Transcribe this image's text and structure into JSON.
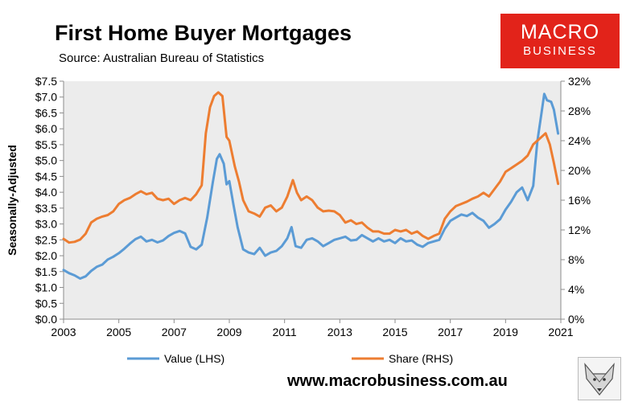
{
  "header": {
    "title": "First Home Buyer Mortgages",
    "subtitle": "Source: Australian Bureau of Statistics"
  },
  "logo": {
    "line1": "MACRO",
    "line2": "BUSINESS",
    "color": "#e2231a"
  },
  "footer": {
    "website": "www.macrobusiness.com.au"
  },
  "icons": {
    "fox": "fox-head-icon"
  },
  "colors": {
    "value_series": "#5b9bd5",
    "share_series": "#ed7d31",
    "plot_bg": "#ececec"
  },
  "chart_data": {
    "type": "line",
    "title": "First Home Buyer Mortgages",
    "ylabel": "Seasonally-Adjusted",
    "ylim": [
      0,
      7.5
    ],
    "y2lim": [
      0,
      32
    ],
    "xlim": [
      2003,
      2021
    ],
    "x_ticks": [
      "2003",
      "2005",
      "2007",
      "2009",
      "2011",
      "2013",
      "2015",
      "2017",
      "2019",
      "2021"
    ],
    "y_ticks": [
      "$0.0",
      "$0.5",
      "$1.0",
      "$1.5",
      "$2.0",
      "$2.5",
      "$3.0",
      "$3.5",
      "$4.0",
      "$4.5",
      "$5.0",
      "$5.5",
      "$6.0",
      "$6.5",
      "$7.0",
      "$7.5"
    ],
    "y2_ticks": [
      "0%",
      "4%",
      "8%",
      "12%",
      "16%",
      "20%",
      "24%",
      "28%",
      "32%"
    ],
    "grid": false,
    "legend_position": "bottom",
    "series": [
      {
        "name": "Value (LHS)",
        "axis": "left",
        "color": "#5b9bd5",
        "points": [
          [
            2003.0,
            1.55
          ],
          [
            2003.2,
            1.45
          ],
          [
            2003.4,
            1.38
          ],
          [
            2003.6,
            1.28
          ],
          [
            2003.8,
            1.35
          ],
          [
            2004.0,
            1.52
          ],
          [
            2004.2,
            1.65
          ],
          [
            2004.4,
            1.72
          ],
          [
            2004.6,
            1.88
          ],
          [
            2004.8,
            1.97
          ],
          [
            2005.0,
            2.08
          ],
          [
            2005.2,
            2.22
          ],
          [
            2005.4,
            2.38
          ],
          [
            2005.6,
            2.52
          ],
          [
            2005.8,
            2.6
          ],
          [
            2006.0,
            2.45
          ],
          [
            2006.2,
            2.5
          ],
          [
            2006.4,
            2.42
          ],
          [
            2006.6,
            2.48
          ],
          [
            2006.8,
            2.62
          ],
          [
            2007.0,
            2.72
          ],
          [
            2007.2,
            2.78
          ],
          [
            2007.4,
            2.7
          ],
          [
            2007.6,
            2.28
          ],
          [
            2007.8,
            2.2
          ],
          [
            2008.0,
            2.35
          ],
          [
            2008.2,
            3.2
          ],
          [
            2008.4,
            4.3
          ],
          [
            2008.55,
            5.05
          ],
          [
            2008.65,
            5.2
          ],
          [
            2008.8,
            4.9
          ],
          [
            2008.9,
            4.25
          ],
          [
            2009.0,
            4.35
          ],
          [
            2009.15,
            3.6
          ],
          [
            2009.3,
            2.9
          ],
          [
            2009.5,
            2.2
          ],
          [
            2009.7,
            2.1
          ],
          [
            2009.9,
            2.05
          ],
          [
            2010.1,
            2.25
          ],
          [
            2010.3,
            2.0
          ],
          [
            2010.5,
            2.1
          ],
          [
            2010.7,
            2.15
          ],
          [
            2010.9,
            2.3
          ],
          [
            2011.1,
            2.55
          ],
          [
            2011.25,
            2.9
          ],
          [
            2011.4,
            2.3
          ],
          [
            2011.6,
            2.25
          ],
          [
            2011.8,
            2.5
          ],
          [
            2012.0,
            2.55
          ],
          [
            2012.2,
            2.45
          ],
          [
            2012.4,
            2.3
          ],
          [
            2012.6,
            2.4
          ],
          [
            2012.8,
            2.5
          ],
          [
            2013.0,
            2.55
          ],
          [
            2013.2,
            2.6
          ],
          [
            2013.4,
            2.48
          ],
          [
            2013.6,
            2.5
          ],
          [
            2013.8,
            2.65
          ],
          [
            2014.0,
            2.55
          ],
          [
            2014.2,
            2.45
          ],
          [
            2014.4,
            2.55
          ],
          [
            2014.6,
            2.45
          ],
          [
            2014.8,
            2.5
          ],
          [
            2015.0,
            2.4
          ],
          [
            2015.2,
            2.55
          ],
          [
            2015.4,
            2.45
          ],
          [
            2015.6,
            2.48
          ],
          [
            2015.8,
            2.35
          ],
          [
            2016.0,
            2.28
          ],
          [
            2016.2,
            2.4
          ],
          [
            2016.4,
            2.45
          ],
          [
            2016.6,
            2.5
          ],
          [
            2016.8,
            2.85
          ],
          [
            2017.0,
            3.1
          ],
          [
            2017.2,
            3.2
          ],
          [
            2017.4,
            3.3
          ],
          [
            2017.6,
            3.25
          ],
          [
            2017.8,
            3.35
          ],
          [
            2018.0,
            3.2
          ],
          [
            2018.2,
            3.1
          ],
          [
            2018.4,
            2.88
          ],
          [
            2018.6,
            3.0
          ],
          [
            2018.8,
            3.15
          ],
          [
            2019.0,
            3.45
          ],
          [
            2019.2,
            3.7
          ],
          [
            2019.4,
            4.0
          ],
          [
            2019.6,
            4.15
          ],
          [
            2019.8,
            3.75
          ],
          [
            2020.0,
            4.2
          ],
          [
            2020.15,
            5.6
          ],
          [
            2020.3,
            6.5
          ],
          [
            2020.4,
            7.1
          ],
          [
            2020.5,
            6.9
          ],
          [
            2020.65,
            6.85
          ],
          [
            2020.75,
            6.6
          ],
          [
            2020.9,
            5.85
          ]
        ]
      },
      {
        "name": "Share (RHS)",
        "axis": "right",
        "color": "#ed7d31",
        "points": [
          [
            2003.0,
            10.8
          ],
          [
            2003.2,
            10.3
          ],
          [
            2003.4,
            10.4
          ],
          [
            2003.6,
            10.7
          ],
          [
            2003.8,
            11.5
          ],
          [
            2004.0,
            13.0
          ],
          [
            2004.2,
            13.5
          ],
          [
            2004.4,
            13.8
          ],
          [
            2004.6,
            14.0
          ],
          [
            2004.8,
            14.5
          ],
          [
            2005.0,
            15.5
          ],
          [
            2005.2,
            16.0
          ],
          [
            2005.4,
            16.3
          ],
          [
            2005.6,
            16.8
          ],
          [
            2005.8,
            17.2
          ],
          [
            2006.0,
            16.8
          ],
          [
            2006.2,
            17.0
          ],
          [
            2006.4,
            16.2
          ],
          [
            2006.6,
            16.0
          ],
          [
            2006.8,
            16.2
          ],
          [
            2007.0,
            15.5
          ],
          [
            2007.2,
            16.0
          ],
          [
            2007.4,
            16.3
          ],
          [
            2007.6,
            16.0
          ],
          [
            2007.8,
            16.8
          ],
          [
            2008.0,
            18.0
          ],
          [
            2008.15,
            25.0
          ],
          [
            2008.3,
            28.5
          ],
          [
            2008.45,
            30.0
          ],
          [
            2008.6,
            30.5
          ],
          [
            2008.75,
            30.0
          ],
          [
            2008.9,
            24.5
          ],
          [
            2009.0,
            24.0
          ],
          [
            2009.2,
            20.5
          ],
          [
            2009.35,
            18.5
          ],
          [
            2009.5,
            16.0
          ],
          [
            2009.7,
            14.5
          ],
          [
            2009.9,
            14.2
          ],
          [
            2010.1,
            13.8
          ],
          [
            2010.3,
            15.0
          ],
          [
            2010.5,
            15.3
          ],
          [
            2010.7,
            14.5
          ],
          [
            2010.9,
            15.0
          ],
          [
            2011.1,
            16.5
          ],
          [
            2011.3,
            18.7
          ],
          [
            2011.45,
            17.0
          ],
          [
            2011.6,
            16.0
          ],
          [
            2011.8,
            16.5
          ],
          [
            2012.0,
            16.0
          ],
          [
            2012.2,
            15.0
          ],
          [
            2012.4,
            14.5
          ],
          [
            2012.6,
            14.6
          ],
          [
            2012.8,
            14.5
          ],
          [
            2013.0,
            14.0
          ],
          [
            2013.2,
            13.0
          ],
          [
            2013.4,
            13.3
          ],
          [
            2013.6,
            12.8
          ],
          [
            2013.8,
            13.0
          ],
          [
            2014.0,
            12.3
          ],
          [
            2014.2,
            11.8
          ],
          [
            2014.4,
            11.8
          ],
          [
            2014.6,
            11.5
          ],
          [
            2014.8,
            11.5
          ],
          [
            2015.0,
            12.0
          ],
          [
            2015.2,
            11.8
          ],
          [
            2015.4,
            12.0
          ],
          [
            2015.6,
            11.5
          ],
          [
            2015.8,
            11.8
          ],
          [
            2016.0,
            11.2
          ],
          [
            2016.2,
            10.8
          ],
          [
            2016.4,
            11.2
          ],
          [
            2016.6,
            11.5
          ],
          [
            2016.8,
            13.5
          ],
          [
            2017.0,
            14.5
          ],
          [
            2017.2,
            15.2
          ],
          [
            2017.4,
            15.5
          ],
          [
            2017.6,
            15.8
          ],
          [
            2017.8,
            16.2
          ],
          [
            2018.0,
            16.5
          ],
          [
            2018.2,
            17.0
          ],
          [
            2018.4,
            16.5
          ],
          [
            2018.6,
            17.5
          ],
          [
            2018.8,
            18.5
          ],
          [
            2019.0,
            19.8
          ],
          [
            2019.2,
            20.3
          ],
          [
            2019.4,
            20.8
          ],
          [
            2019.6,
            21.3
          ],
          [
            2019.8,
            22.0
          ],
          [
            2020.0,
            23.5
          ],
          [
            2020.15,
            24.0
          ],
          [
            2020.3,
            24.5
          ],
          [
            2020.45,
            25.0
          ],
          [
            2020.6,
            23.5
          ],
          [
            2020.75,
            21.0
          ],
          [
            2020.9,
            18.2
          ]
        ]
      }
    ]
  }
}
